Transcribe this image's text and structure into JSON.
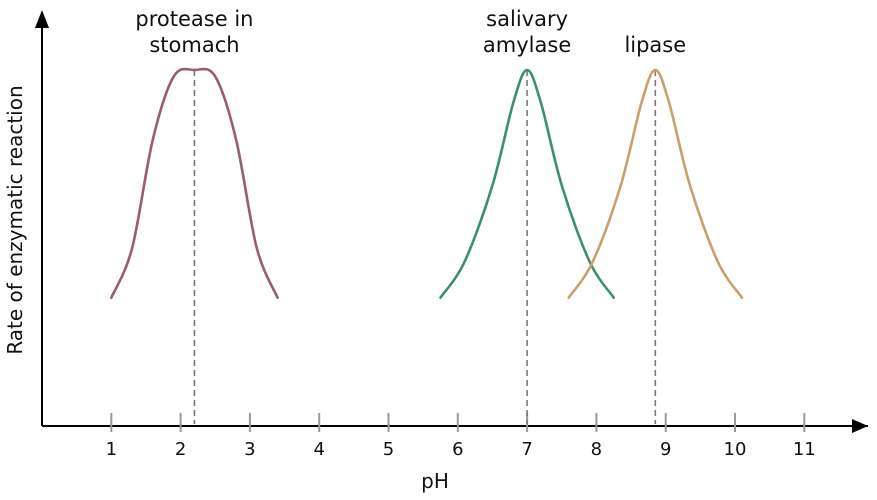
{
  "chart_data": {
    "type": "line",
    "title": "",
    "xlabel": "pH",
    "ylabel": "Rate of enzymatic reaction",
    "xlim": [
      0,
      11.8
    ],
    "x_ticks": [
      "1",
      "2",
      "3",
      "4",
      "5",
      "6",
      "7",
      "8",
      "9",
      "10",
      "11"
    ],
    "y_ticks": [],
    "grid": false,
    "legend": "none",
    "series": [
      {
        "name": "protease in stomach",
        "label_lines": [
          "protease in",
          "stomach"
        ],
        "color": "#9b5b73",
        "peak_x": 2.2,
        "x": [
          1.0,
          1.3,
          1.6,
          1.9,
          2.2,
          2.5,
          2.8,
          3.1,
          3.4
        ],
        "y": [
          0.31,
          0.46,
          0.79,
          0.98,
          1.0,
          0.98,
          0.79,
          0.46,
          0.31
        ]
      },
      {
        "name": "salivary amylase",
        "label_lines": [
          "salivary",
          "amylase"
        ],
        "color": "#3e8f6c",
        "peak_x": 7.0,
        "x": [
          5.75,
          6.1,
          6.5,
          6.8,
          7.0,
          7.2,
          7.5,
          7.9,
          8.25
        ],
        "y": [
          0.31,
          0.42,
          0.65,
          0.9,
          1.0,
          0.9,
          0.65,
          0.42,
          0.31
        ]
      },
      {
        "name": "lipase",
        "label_lines": [
          "lipase"
        ],
        "color": "#c9a06a",
        "peak_x": 8.85,
        "x": [
          7.6,
          7.95,
          8.35,
          8.65,
          8.85,
          9.05,
          9.35,
          9.75,
          10.1
        ],
        "y": [
          0.31,
          0.42,
          0.65,
          0.9,
          1.0,
          0.9,
          0.65,
          0.42,
          0.31
        ]
      }
    ]
  }
}
